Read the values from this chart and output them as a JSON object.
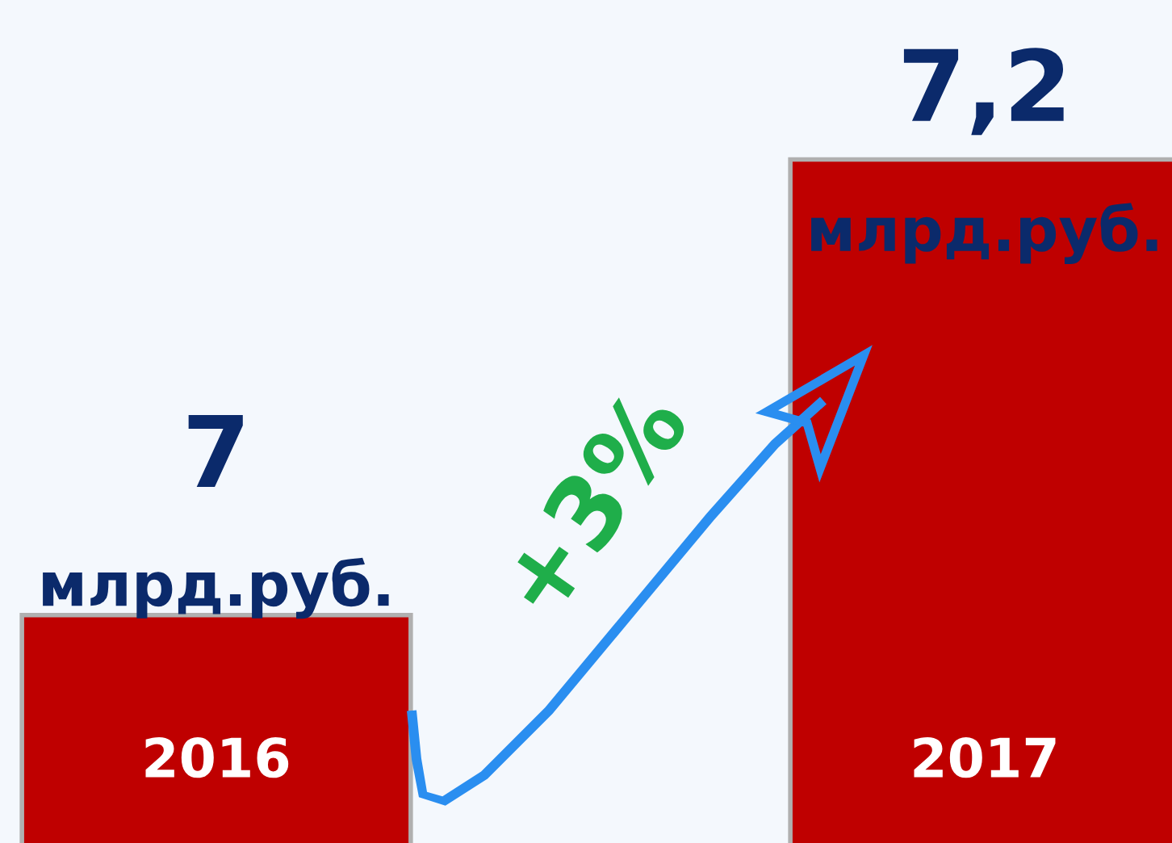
{
  "chart_data": {
    "type": "bar",
    "categories": [
      "2016",
      "2017"
    ],
    "values": [
      7,
      7.2
    ],
    "value_labels": [
      "7",
      "7,2"
    ],
    "color": "#bf0000",
    "ylim": [
      6.9,
      7.27
    ],
    "annotations": [
      {
        "text": "млрд.руб.",
        "x": "2016",
        "y": 7
      },
      {
        "text": "млрд.руб.",
        "x": "2017",
        "y": 7.2
      },
      "+3%"
    ]
  }
}
